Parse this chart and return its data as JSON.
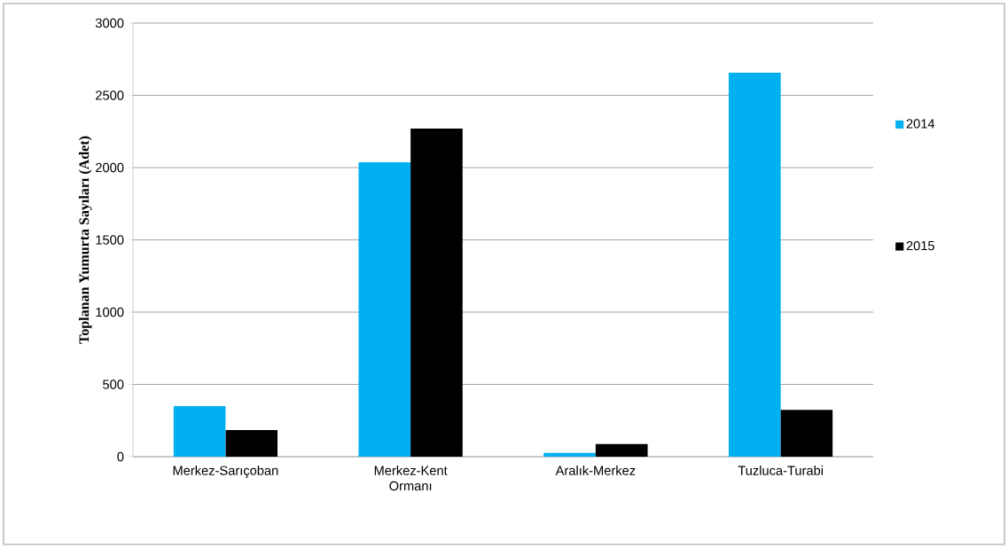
{
  "chart_data": {
    "type": "bar",
    "ylabel": "Toplanan Yumurta Sayıları (Adet)",
    "categories": [
      "Merkez-Sarıçoban",
      "Merkez-Kent Ormanı",
      "Aralık-Merkez",
      "Tuzluca-Turabi"
    ],
    "series": [
      {
        "name": "2014",
        "color": "#00b0f0",
        "values": [
          349,
          2037,
          26,
          2656
        ]
      },
      {
        "name": "2015",
        "color": "#000000",
        "values": [
          184,
          2270,
          88,
          324
        ]
      }
    ],
    "ylim": [
      0,
      3000
    ],
    "yticks": [
      0,
      500,
      1000,
      1500,
      2000,
      2500,
      3000
    ],
    "grid": "y",
    "legend": "right"
  }
}
